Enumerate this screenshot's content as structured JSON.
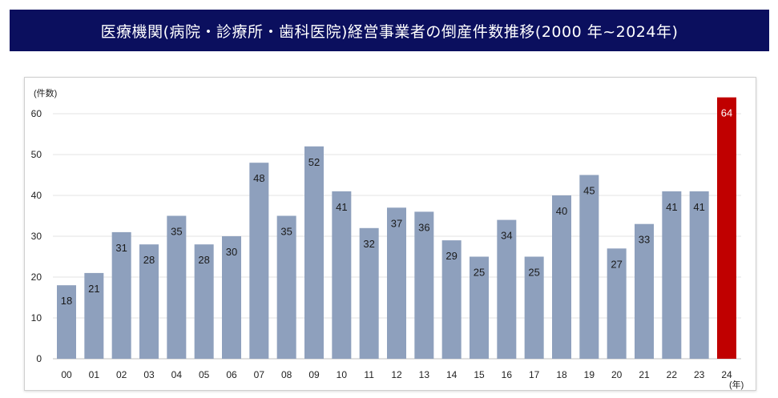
{
  "chart_data": {
    "type": "bar",
    "title": "医療機関(病院・診療所・歯科医院)経営事業者の倒産件数推移(2000 年~2024年)",
    "ylabel": "(件数)",
    "xlabel": "(年)",
    "ylim": [
      0,
      60
    ],
    "yticks": [
      0,
      10,
      20,
      30,
      40,
      50,
      60
    ],
    "grid": true,
    "categories": [
      "00",
      "01",
      "02",
      "03",
      "04",
      "05",
      "06",
      "07",
      "08",
      "09",
      "10",
      "11",
      "12",
      "13",
      "14",
      "15",
      "16",
      "17",
      "18",
      "19",
      "20",
      "21",
      "22",
      "23",
      "24"
    ],
    "values": [
      18,
      21,
      31,
      28,
      35,
      28,
      30,
      48,
      35,
      52,
      41,
      32,
      37,
      36,
      29,
      25,
      34,
      25,
      40,
      45,
      27,
      33,
      41,
      41,
      64
    ],
    "colors": {
      "bar": "#8ea0bd",
      "highlight": "#c00000",
      "banner": "#0b0f5e"
    },
    "highlight_category": "24"
  }
}
